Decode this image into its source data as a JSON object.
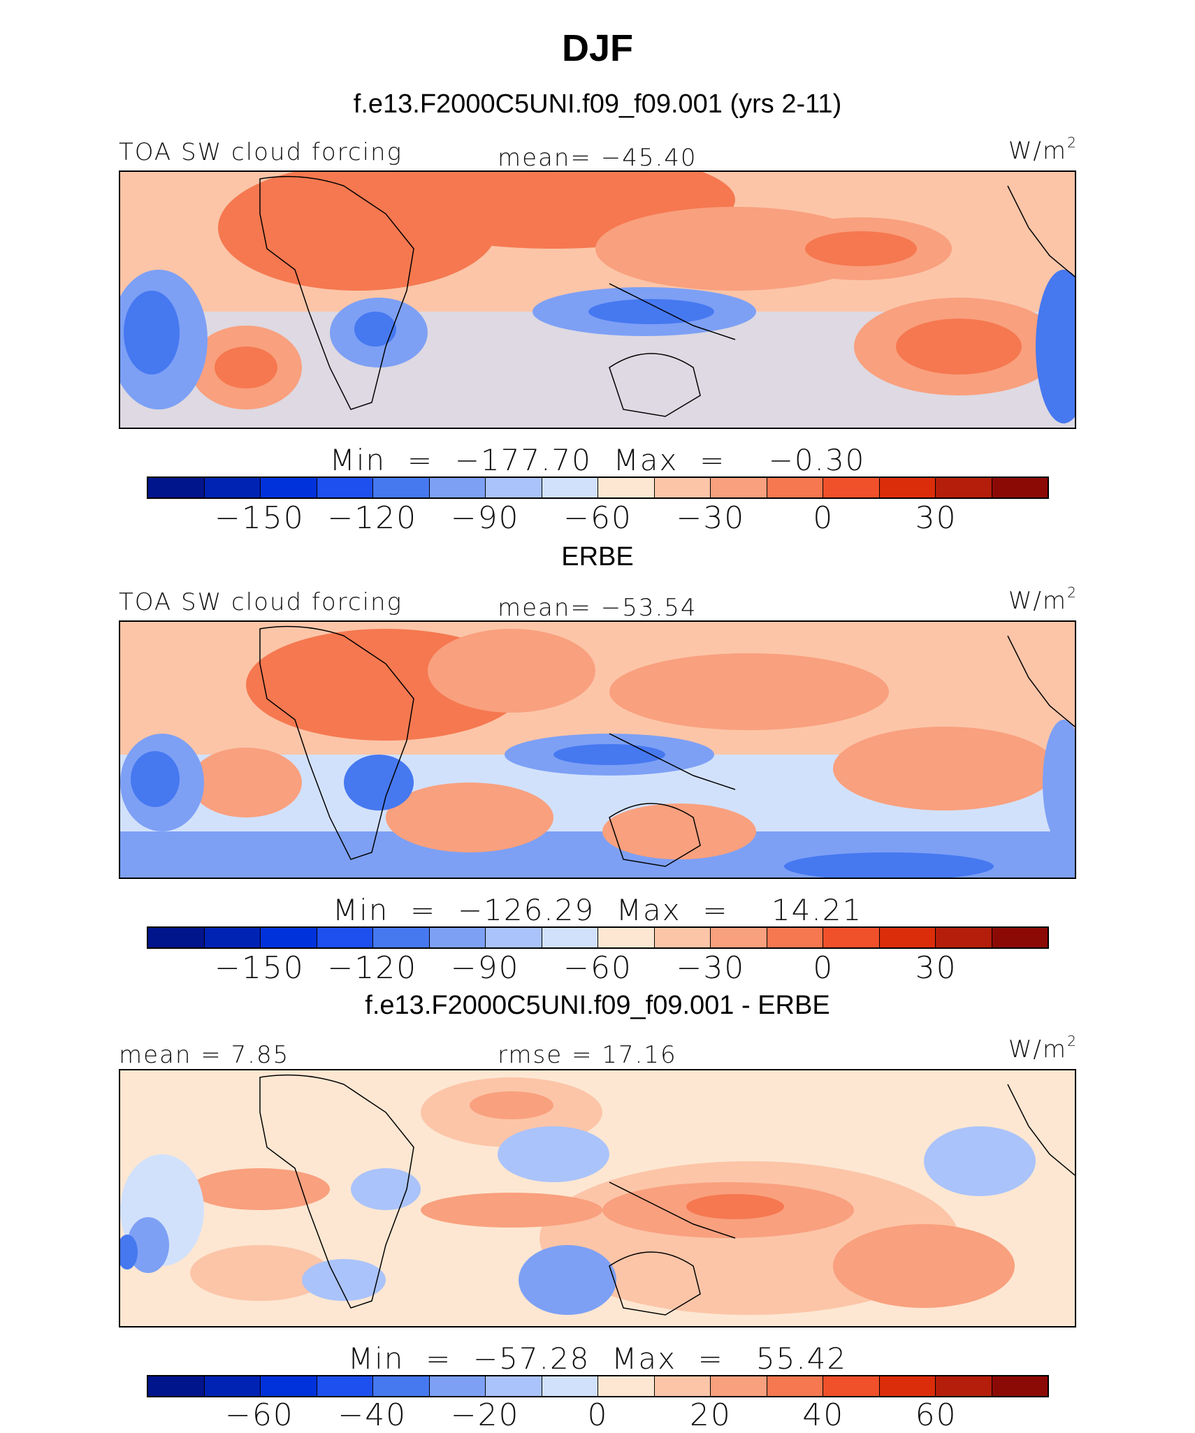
{
  "title": "DJF",
  "units_label": "W/m",
  "units_superscript": "2",
  "colors": {
    "palette": [
      "#00148c",
      "#0023b4",
      "#0032dc",
      "#1e50f0",
      "#4678f0",
      "#7da0f5",
      "#aac3fa",
      "#d2e1fb",
      "#fde7d2",
      "#fcc5a8",
      "#f9a07e",
      "#f57850",
      "#f0502a",
      "#dc2d0a",
      "#b41e0a",
      "#8c0a05"
    ]
  },
  "panels": [
    {
      "title": "f.e13.F2000C5UNI.f09_f09.001 (yrs 2-11)",
      "left_label": "TOA SW cloud forcing",
      "mid_label": "mean=  −45.40",
      "minmax": "Min  =  −177.70  Max  =    −0.30",
      "ticks": [
        "−150",
        "−120",
        "−90",
        "−60",
        "−30",
        "0",
        "30"
      ]
    },
    {
      "title": "ERBE",
      "left_label": "TOA SW cloud forcing",
      "mid_label": "mean=  −53.54",
      "minmax": "Min  =  −126.29  Max  =    14.21",
      "ticks": [
        "−150",
        "−120",
        "−90",
        "−60",
        "−30",
        "0",
        "30"
      ]
    },
    {
      "title": "f.e13.F2000C5UNI.f09_f09.001 - ERBE",
      "left_label": "mean  =    7.85",
      "mid_label": "rmse  =   17.16",
      "minmax": "Min  =  −57.28  Max  =   55.42",
      "ticks": [
        "−60",
        "−40",
        "−20",
        "0",
        "20",
        "40",
        "60"
      ]
    }
  ],
  "chart_data": [
    {
      "type": "heatmap",
      "title": "f.e13.F2000C5UNI.f09_f09.001 (yrs 2-11)",
      "variable": "TOA SW cloud forcing",
      "units": "W/m2",
      "mean": -45.4,
      "min": -177.7,
      "max": -0.3,
      "colorbar_levels": [
        -165,
        -150,
        -135,
        -120,
        -105,
        -90,
        -75,
        -60,
        -45,
        -30,
        -15,
        0,
        15,
        30,
        45
      ],
      "colorbar_tick_labels": [
        -150,
        -120,
        -90,
        -60,
        -30,
        0,
        30
      ]
    },
    {
      "type": "heatmap",
      "title": "ERBE",
      "variable": "TOA SW cloud forcing",
      "units": "W/m2",
      "mean": -53.54,
      "min": -126.29,
      "max": 14.21,
      "colorbar_levels": [
        -165,
        -150,
        -135,
        -120,
        -105,
        -90,
        -75,
        -60,
        -45,
        -30,
        -15,
        0,
        15,
        30,
        45
      ],
      "colorbar_tick_labels": [
        -150,
        -120,
        -90,
        -60,
        -30,
        0,
        30
      ]
    },
    {
      "type": "heatmap",
      "title": "f.e13.F2000C5UNI.f09_f09.001 - ERBE",
      "units": "W/m2",
      "mean": 7.85,
      "rmse": 17.16,
      "min": -57.28,
      "max": 55.42,
      "colorbar_levels": [
        -70,
        -60,
        -50,
        -40,
        -30,
        -20,
        -10,
        0,
        10,
        20,
        30,
        40,
        50,
        60,
        70
      ],
      "colorbar_tick_labels": [
        -60,
        -40,
        -20,
        0,
        20,
        40,
        60
      ]
    }
  ]
}
